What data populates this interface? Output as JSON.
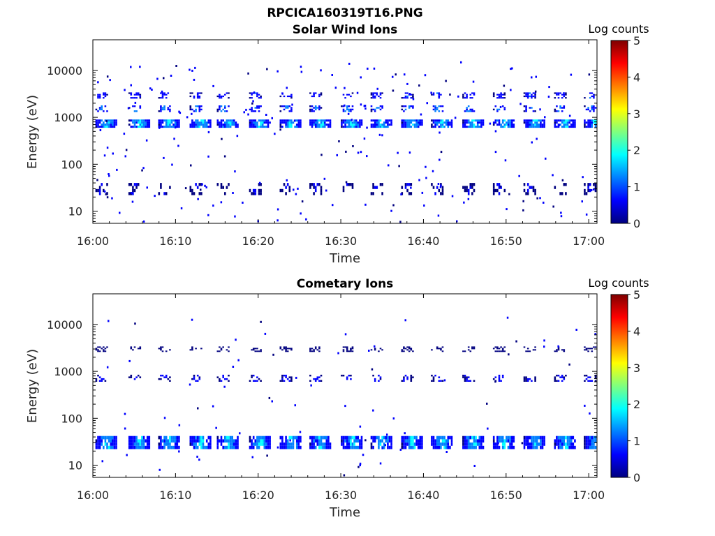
{
  "figure": {
    "title": "RPCICA160319T16.PNG",
    "colorbar_label": "Log counts",
    "colormap": [
      "#00007f",
      "#0000ff",
      "#007fff",
      "#00ffff",
      "#7fff7f",
      "#ffff00",
      "#ff7f00",
      "#ff0000",
      "#7f0000"
    ]
  },
  "chart_data": [
    {
      "type": "heatmap",
      "title": "Solar Wind Ions",
      "xlabel": "Time",
      "ylabel": "Energy (eV)",
      "y_scale": "log",
      "ylim": [
        5.5,
        45000
      ],
      "xlim": [
        "16:00",
        "17:01"
      ],
      "x_ticks": [
        "16:00",
        "16:10",
        "16:20",
        "16:30",
        "16:40",
        "16:50",
        "17:00"
      ],
      "y_ticks": [
        {
          "value": 10,
          "label": "10"
        },
        {
          "value": 100,
          "label": "100"
        },
        {
          "value": 1000,
          "label": "1000"
        },
        {
          "value": 10000,
          "label": "10000"
        }
      ],
      "colorbar": {
        "label": "Log counts",
        "range": [
          0,
          5
        ],
        "ticks": [
          "0",
          "1",
          "2",
          "3",
          "4",
          "5"
        ]
      },
      "sweep_start_minutes": [
        0.3,
        4.3,
        7.9,
        11.7,
        15.0,
        18.9,
        22.6,
        26.2,
        30.0,
        33.6,
        37.3,
        40.9,
        44.7,
        48.4,
        52.1,
        55.8,
        59.4
      ],
      "bands": [
        {
          "name": "",
          "energy_range_ev": [
            600,
            900
          ],
          "log_counts_peak": 2.2
        },
        {
          "name": "",
          "energy_range_ev": [
            1300,
            1800
          ],
          "log_counts_peak": 1.8
        },
        {
          "name": "",
          "energy_range_ev": [
            2500,
            3400
          ],
          "log_counts_peak": 1.4
        },
        {
          "name": "",
          "energy_range_ev": [
            22,
            40
          ],
          "log_counts_peak": 0.8
        }
      ]
    },
    {
      "type": "heatmap",
      "title": "Cometary Ions",
      "xlabel": "Time",
      "ylabel": "Energy (eV)",
      "y_scale": "log",
      "ylim": [
        5.5,
        45000
      ],
      "xlim": [
        "16:00",
        "17:01"
      ],
      "x_ticks": [
        "16:00",
        "16:10",
        "16:20",
        "16:30",
        "16:40",
        "16:50",
        "17:00"
      ],
      "y_ticks": [
        {
          "value": 10,
          "label": "10"
        },
        {
          "value": 100,
          "label": "100"
        },
        {
          "value": 1000,
          "label": "1000"
        },
        {
          "value": 10000,
          "label": "10000"
        }
      ],
      "colorbar": {
        "label": "Log counts",
        "range": [
          0,
          5
        ],
        "ticks": [
          "0",
          "1",
          "2",
          "3",
          "4",
          "5"
        ]
      },
      "sweep_start_minutes": [
        0.3,
        4.3,
        7.9,
        11.7,
        15.0,
        18.9,
        22.6,
        26.2,
        30.0,
        33.6,
        37.3,
        40.9,
        44.7,
        48.4,
        52.1,
        55.8,
        59.4
      ],
      "bands": [
        {
          "name": "",
          "energy_range_ev": [
            22,
            42
          ],
          "log_counts_peak": 2.2
        },
        {
          "name": "",
          "energy_range_ev": [
            600,
            850
          ],
          "log_counts_peak": 1.0
        },
        {
          "name": "",
          "energy_range_ev": [
            2600,
            3400
          ],
          "log_counts_peak": 0.6
        }
      ]
    }
  ]
}
